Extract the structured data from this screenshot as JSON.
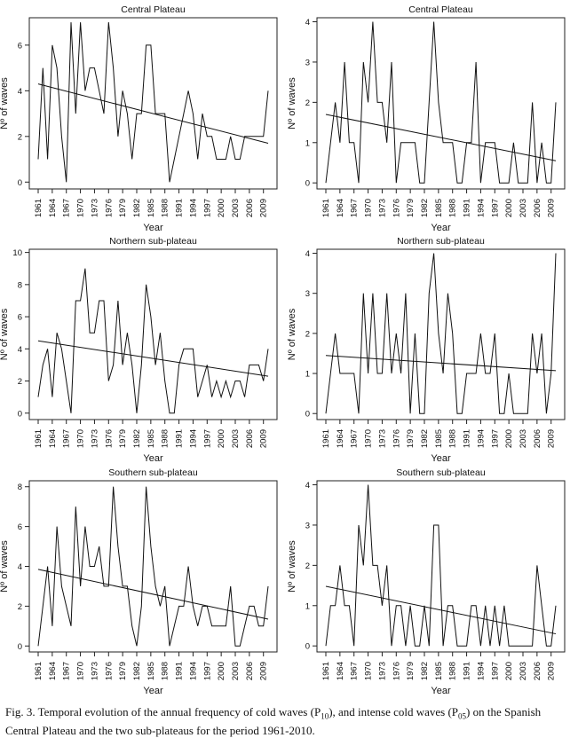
{
  "chart_data": [
    {
      "type": "line",
      "title": "Central Plateau",
      "xlabel": "Year",
      "ylabel": "Nº of waves",
      "x_ticks": [
        "1961",
        "1964",
        "1967",
        "1970",
        "1973",
        "1976",
        "1979",
        "1982",
        "1985",
        "1988",
        "1991",
        "1994",
        "1997",
        "2000",
        "2003",
        "2006",
        "2009"
      ],
      "y_ticks": [
        0,
        2,
        4,
        6
      ],
      "ylim": [
        -0.3,
        7.2
      ],
      "x": [
        1961,
        1962,
        1963,
        1964,
        1965,
        1966,
        1967,
        1968,
        1969,
        1970,
        1971,
        1972,
        1973,
        1974,
        1975,
        1976,
        1977,
        1978,
        1979,
        1980,
        1981,
        1982,
        1983,
        1984,
        1985,
        1986,
        1987,
        1988,
        1989,
        1990,
        1991,
        1992,
        1993,
        1994,
        1995,
        1996,
        1997,
        1998,
        1999,
        2000,
        2001,
        2002,
        2003,
        2004,
        2005,
        2006,
        2007,
        2008,
        2009,
        2010
      ],
      "values": [
        1,
        5,
        1,
        6,
        5,
        2,
        0,
        7,
        3,
        7,
        4,
        5,
        5,
        4,
        3,
        7,
        5,
        2,
        4,
        3,
        1,
        3,
        3,
        6,
        6,
        3,
        3,
        3,
        0,
        1,
        2,
        3,
        4,
        3,
        1,
        3,
        2,
        2,
        1,
        1,
        1,
        2,
        1,
        1,
        2,
        2,
        2,
        2,
        2,
        4
      ],
      "trend": {
        "start": [
          1961,
          4.3
        ],
        "end": [
          2010,
          1.7
        ]
      }
    },
    {
      "type": "line",
      "title": "Central Plateau",
      "xlabel": "Year",
      "ylabel": "Nº of waves",
      "x_ticks": [
        "1961",
        "1964",
        "1967",
        "1970",
        "1973",
        "1976",
        "1979",
        "1982",
        "1985",
        "1988",
        "1991",
        "1994",
        "1997",
        "2000",
        "2003",
        "2006",
        "2009"
      ],
      "y_ticks": [
        0,
        1,
        2,
        3,
        4
      ],
      "ylim": [
        -0.15,
        4.1
      ],
      "x": [
        1961,
        1962,
        1963,
        1964,
        1965,
        1966,
        1967,
        1968,
        1969,
        1970,
        1971,
        1972,
        1973,
        1974,
        1975,
        1976,
        1977,
        1978,
        1979,
        1980,
        1981,
        1982,
        1983,
        1984,
        1985,
        1986,
        1987,
        1988,
        1989,
        1990,
        1991,
        1992,
        1993,
        1994,
        1995,
        1996,
        1997,
        1998,
        1999,
        2000,
        2001,
        2002,
        2003,
        2004,
        2005,
        2006,
        2007,
        2008,
        2009,
        2010
      ],
      "values": [
        0,
        1,
        2,
        1,
        3,
        1,
        1,
        0,
        3,
        2,
        4,
        2,
        2,
        1,
        3,
        0,
        1,
        1,
        1,
        1,
        0,
        0,
        2,
        4,
        2,
        1,
        1,
        1,
        0,
        0,
        1,
        1,
        3,
        0,
        1,
        1,
        1,
        0,
        0,
        0,
        1,
        0,
        0,
        0,
        2,
        0,
        1,
        0,
        0,
        2
      ],
      "trend": {
        "start": [
          1961,
          1.7
        ],
        "end": [
          2010,
          0.55
        ]
      }
    },
    {
      "type": "line",
      "title": "Northern sub-plateau",
      "xlabel": "Year",
      "ylabel": "Nº of waves",
      "x_ticks": [
        "1961",
        "1964",
        "1967",
        "1970",
        "1973",
        "1976",
        "1979",
        "1982",
        "1985",
        "1988",
        "1991",
        "1994",
        "1997",
        "2000",
        "2003",
        "2006",
        "2009"
      ],
      "y_ticks": [
        0,
        2,
        4,
        6,
        8,
        10
      ],
      "ylim": [
        -0.4,
        10.2
      ],
      "x": [
        1961,
        1962,
        1963,
        1964,
        1965,
        1966,
        1967,
        1968,
        1969,
        1970,
        1971,
        1972,
        1973,
        1974,
        1975,
        1976,
        1977,
        1978,
        1979,
        1980,
        1981,
        1982,
        1983,
        1984,
        1985,
        1986,
        1987,
        1988,
        1989,
        1990,
        1991,
        1992,
        1993,
        1994,
        1995,
        1996,
        1997,
        1998,
        1999,
        2000,
        2001,
        2002,
        2003,
        2004,
        2005,
        2006,
        2007,
        2008,
        2009,
        2010
      ],
      "values": [
        1,
        3,
        4,
        1,
        5,
        4,
        2,
        0,
        7,
        7,
        9,
        5,
        5,
        7,
        7,
        2,
        3,
        7,
        3,
        5,
        3,
        0,
        3,
        8,
        6,
        3,
        5,
        2,
        0,
        0,
        3,
        4,
        4,
        4,
        1,
        2,
        3,
        1,
        2,
        1,
        2,
        1,
        2,
        2,
        1,
        3,
        3,
        3,
        2,
        4
      ],
      "trend": {
        "start": [
          1961,
          4.5
        ],
        "end": [
          2010,
          2.3
        ]
      }
    },
    {
      "type": "line",
      "title": "Northern sub-plateau",
      "xlabel": "Year",
      "ylabel": "Nº of waves",
      "x_ticks": [
        "1961",
        "1964",
        "1967",
        "1970",
        "1973",
        "1976",
        "1979",
        "1982",
        "1985",
        "1988",
        "1991",
        "1994",
        "1997",
        "2000",
        "2003",
        "2006",
        "2009"
      ],
      "y_ticks": [
        0,
        1,
        2,
        3,
        4
      ],
      "ylim": [
        -0.15,
        4.1
      ],
      "x": [
        1961,
        1962,
        1963,
        1964,
        1965,
        1966,
        1967,
        1968,
        1969,
        1970,
        1971,
        1972,
        1973,
        1974,
        1975,
        1976,
        1977,
        1978,
        1979,
        1980,
        1981,
        1982,
        1983,
        1984,
        1985,
        1986,
        1987,
        1988,
        1989,
        1990,
        1991,
        1992,
        1993,
        1994,
        1995,
        1996,
        1997,
        1998,
        1999,
        2000,
        2001,
        2002,
        2003,
        2004,
        2005,
        2006,
        2007,
        2008,
        2009,
        2010
      ],
      "values": [
        0,
        1,
        2,
        1,
        1,
        1,
        1,
        0,
        3,
        1,
        3,
        1,
        1,
        3,
        1,
        2,
        1,
        3,
        0,
        2,
        0,
        0,
        3,
        4,
        2,
        1,
        3,
        2,
        0,
        0,
        1,
        1,
        1,
        2,
        1,
        1,
        2,
        0,
        0,
        1,
        0,
        0,
        0,
        0,
        2,
        1,
        2,
        0,
        1,
        4
      ],
      "trend": {
        "start": [
          1961,
          1.45
        ],
        "end": [
          2010,
          1.07
        ]
      }
    },
    {
      "type": "line",
      "title": "Southern sub-plateau",
      "xlabel": "Year",
      "ylabel": "Nº of waves",
      "x_ticks": [
        "1961",
        "1964",
        "1967",
        "1970",
        "1973",
        "1976",
        "1979",
        "1982",
        "1985",
        "1988",
        "1991",
        "1994",
        "1997",
        "2000",
        "2003",
        "2006",
        "2009"
      ],
      "y_ticks": [
        0,
        2,
        4,
        6,
        8
      ],
      "ylim": [
        -0.3,
        8.3
      ],
      "x": [
        1961,
        1962,
        1963,
        1964,
        1965,
        1966,
        1967,
        1968,
        1969,
        1970,
        1971,
        1972,
        1973,
        1974,
        1975,
        1976,
        1977,
        1978,
        1979,
        1980,
        1981,
        1982,
        1983,
        1984,
        1985,
        1986,
        1987,
        1988,
        1989,
        1990,
        1991,
        1992,
        1993,
        1994,
        1995,
        1996,
        1997,
        1998,
        1999,
        2000,
        2001,
        2002,
        2003,
        2004,
        2005,
        2006,
        2007,
        2008,
        2009,
        2010
      ],
      "values": [
        0,
        2,
        4,
        1,
        6,
        3,
        2,
        1,
        7,
        3,
        6,
        4,
        4,
        5,
        3,
        3,
        8,
        5,
        3,
        3,
        1,
        0,
        2,
        8,
        5,
        3,
        2,
        3,
        0,
        1,
        2,
        2,
        4,
        2,
        1,
        2,
        2,
        1,
        1,
        1,
        1,
        3,
        0,
        0,
        1,
        2,
        2,
        1,
        1,
        3
      ],
      "trend": {
        "start": [
          1961,
          3.85
        ],
        "end": [
          2010,
          1.35
        ]
      }
    },
    {
      "type": "line",
      "title": "Southern sub-plateau",
      "xlabel": "Year",
      "ylabel": "Nº of waves",
      "x_ticks": [
        "1961",
        "1964",
        "1967",
        "1970",
        "1973",
        "1976",
        "1979",
        "1982",
        "1985",
        "1988",
        "1991",
        "1994",
        "1997",
        "2000",
        "2003",
        "2006",
        "2009"
      ],
      "y_ticks": [
        0,
        1,
        2,
        3,
        4
      ],
      "ylim": [
        -0.15,
        4.1
      ],
      "x": [
        1961,
        1962,
        1963,
        1964,
        1965,
        1966,
        1967,
        1968,
        1969,
        1970,
        1971,
        1972,
        1973,
        1974,
        1975,
        1976,
        1977,
        1978,
        1979,
        1980,
        1981,
        1982,
        1983,
        1984,
        1985,
        1986,
        1987,
        1988,
        1989,
        1990,
        1991,
        1992,
        1993,
        1994,
        1995,
        1996,
        1997,
        1998,
        1999,
        2000,
        2001,
        2002,
        2003,
        2004,
        2005,
        2006,
        2007,
        2008,
        2009,
        2010
      ],
      "values": [
        0,
        1,
        1,
        2,
        1,
        1,
        0,
        3,
        2,
        4,
        2,
        2,
        1,
        2,
        0,
        1,
        1,
        0,
        1,
        0,
        0,
        1,
        0,
        3,
        3,
        0,
        1,
        1,
        0,
        0,
        0,
        1,
        1,
        0,
        1,
        0,
        1,
        0,
        1,
        0,
        0,
        0,
        0,
        0,
        0,
        2,
        1,
        0,
        0,
        1
      ],
      "trend": {
        "start": [
          1961,
          1.48
        ],
        "end": [
          2010,
          0.3
        ]
      }
    }
  ],
  "caption": {
    "part1": "Fig. 3. Temporal evolution of the annual frequency of cold waves (P",
    "sub1": "10",
    "part2": "), and intense cold waves (P",
    "sub2": "05",
    "part3": ") on the Spanish Central Plateau and the two sub-plateaus for the period 1961-2010."
  }
}
